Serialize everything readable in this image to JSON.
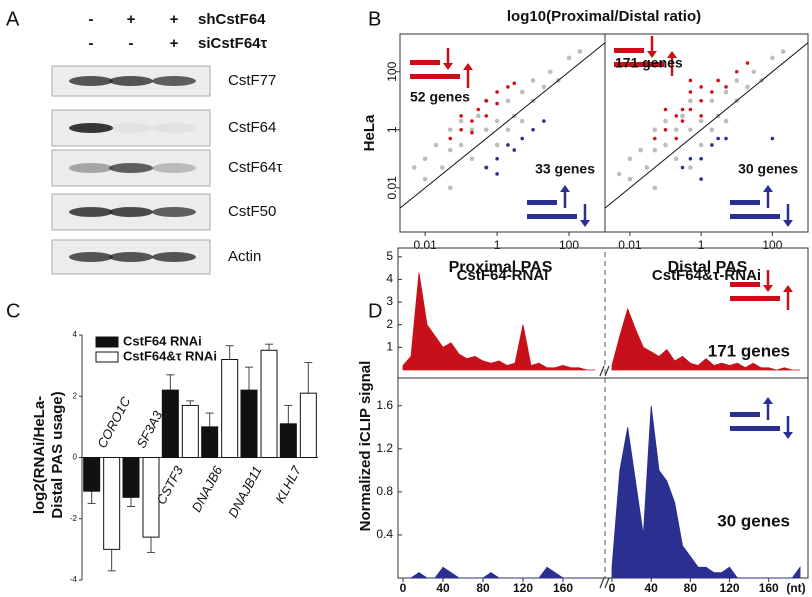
{
  "panel_labels": [
    "A",
    "B",
    "C",
    "D"
  ],
  "blot": {
    "treatments": [
      {
        "name": "shCstF64",
        "lanes": [
          "-",
          "+",
          "+"
        ]
      },
      {
        "name": "siCstF64τ",
        "lanes": [
          "-",
          "-",
          "+"
        ]
      }
    ],
    "rows": [
      "CstF77",
      "CstF64",
      "CstF64τ",
      "CstF50",
      "Actin"
    ]
  },
  "chart_data": [
    {
      "type": "scatter",
      "title": "log10(Proximal/Distal ratio)",
      "ylabel": "HeLa",
      "xlabel": "CstF64-RNAi",
      "log_x": true,
      "log_y": true,
      "xlim": [
        0.002,
        1000
      ],
      "ylim": [
        0.0003,
        2000
      ],
      "xticks": [
        0.01,
        1,
        100
      ],
      "yticks": [
        0.01,
        1,
        100
      ],
      "annotations": [
        "52 genes",
        "33 genes"
      ],
      "series": [
        {
          "color": "#bdbdbd",
          "x": [
            0.005,
            0.01,
            0.01,
            0.02,
            0.03,
            0.05,
            0.05,
            0.1,
            0.1,
            0.2,
            0.2,
            0.3,
            0.5,
            0.5,
            1,
            1,
            2,
            2,
            3,
            5,
            5,
            10,
            10,
            20,
            30,
            50,
            100,
            200,
            0.05,
            0.5
          ],
          "values": [
            0.05,
            0.02,
            0.1,
            0.3,
            0.05,
            0.2,
            1,
            0.3,
            2,
            1,
            0.1,
            3,
            1,
            10,
            2,
            0.3,
            10,
            1,
            3,
            20,
            2,
            10,
            50,
            30,
            100,
            50,
            300,
            500,
            0.01,
            0.05
          ]
        },
        {
          "color": "#d0101c",
          "x": [
            0.05,
            0.1,
            0.1,
            0.2,
            0.3,
            0.5,
            1,
            1,
            2,
            0.2,
            0.5,
            3
          ],
          "values": [
            0.5,
            1,
            3,
            2,
            5,
            10,
            8,
            20,
            30,
            0.8,
            3,
            40
          ]
        },
        {
          "color": "#2b2f8f",
          "x": [
            0.5,
            1,
            2,
            3,
            5,
            10,
            1,
            20
          ],
          "values": [
            0.05,
            0.1,
            0.3,
            0.2,
            0.5,
            1,
            0.03,
            2
          ]
        }
      ]
    },
    {
      "type": "scatter",
      "xlabel": "CstF64&τ-RNAi",
      "log_x": true,
      "log_y": true,
      "xlim": [
        0.002,
        1000
      ],
      "ylim": [
        0.0003,
        2000
      ],
      "xticks": [
        0.01,
        1,
        100
      ],
      "annotations": [
        "171 genes",
        "30 genes"
      ],
      "series": [
        {
          "color": "#bdbdbd",
          "x": [
            0.005,
            0.01,
            0.01,
            0.02,
            0.03,
            0.05,
            0.05,
            0.1,
            0.1,
            0.2,
            0.2,
            0.3,
            0.5,
            0.5,
            1,
            1,
            2,
            2,
            3,
            5,
            5,
            10,
            10,
            20,
            30,
            50,
            100,
            200,
            0.05,
            0.5
          ],
          "values": [
            0.03,
            0.02,
            0.1,
            0.2,
            0.05,
            0.2,
            1,
            0.3,
            2,
            1,
            0.1,
            3,
            1,
            10,
            2,
            0.3,
            10,
            1,
            3,
            20,
            2,
            10,
            50,
            30,
            100,
            50,
            300,
            500,
            0.01,
            0.05
          ]
        },
        {
          "color": "#d0101c",
          "x": [
            0.05,
            0.1,
            0.1,
            0.2,
            0.3,
            0.5,
            0.5,
            1,
            1,
            2,
            3,
            5,
            0.2,
            0.3,
            10,
            20,
            1,
            0.5
          ],
          "values": [
            0.5,
            1,
            5,
            3,
            5,
            20,
            5,
            10,
            30,
            20,
            50,
            30,
            0.5,
            2,
            100,
            200,
            3,
            50
          ]
        },
        {
          "color": "#2b2f8f",
          "x": [
            0.5,
            1,
            1,
            2,
            3,
            5,
            100,
            0.3
          ],
          "values": [
            0.1,
            0.1,
            0.02,
            0.3,
            0.5,
            0.5,
            0.5,
            0.05
          ]
        }
      ]
    },
    {
      "type": "bar",
      "ylabel": [
        "log2(RNAi/HeLa-",
        "Distal PAS usage)"
      ],
      "legend": "upper left",
      "categories": [
        "CORO1C",
        "SF3A3",
        "CSTF3",
        "DNAJB6",
        "DNAJB11",
        "KLHL7"
      ],
      "ylim": [
        -4,
        4
      ],
      "yticks": [
        -4,
        -2,
        0,
        2,
        4
      ],
      "series": [
        {
          "name": "CstF64 RNAi",
          "color": "#111111",
          "values": [
            -1.1,
            -1.3,
            2.2,
            1.0,
            2.2,
            1.1
          ],
          "errors": [
            0.4,
            0.3,
            0.5,
            0.45,
            0.75,
            0.6
          ]
        },
        {
          "name": "CstF64&τ RNAi",
          "color": "#ffffff",
          "values": [
            -3.0,
            -2.6,
            1.7,
            3.2,
            3.5,
            2.1
          ],
          "errors": [
            0.7,
            0.5,
            0.15,
            0.45,
            0.2,
            1.0
          ]
        }
      ]
    },
    {
      "type": "area",
      "ylabel": "Normalized iCLIP signal",
      "annotations": [
        "171 genes"
      ],
      "x": [
        0,
        8,
        16,
        24,
        32,
        40,
        48,
        56,
        64,
        72,
        80,
        88,
        96,
        104,
        112,
        120,
        128,
        136,
        144,
        152,
        160,
        168,
        176,
        184,
        192
      ],
      "xlim": [
        0,
        195
      ],
      "ylim": [
        0,
        5.3
      ],
      "yticks": [
        1,
        2,
        3,
        4,
        5
      ],
      "series": [
        {
          "name": "Proximal PAS",
          "color": "#c8101a",
          "values": [
            0.2,
            0.6,
            4.3,
            2.0,
            1.5,
            1.0,
            1.2,
            0.7,
            0.5,
            0.6,
            0.4,
            0.3,
            0.4,
            0.2,
            0.3,
            2.0,
            0.2,
            0.3,
            0.1,
            0.1,
            0.2,
            0.1,
            0.1,
            0,
            0
          ]
        },
        {
          "name": "Distal PAS",
          "color": "#c8101a",
          "values": [
            0.2,
            1.5,
            2.7,
            1.8,
            1.0,
            0.8,
            0.6,
            0.9,
            0.4,
            0.6,
            0.3,
            0.2,
            0.5,
            0.2,
            0.3,
            0.2,
            0.3,
            0.1,
            0.3,
            0.1,
            0.1,
            0,
            0.1,
            0,
            0
          ]
        }
      ]
    },
    {
      "type": "area",
      "annotations": [
        "30 genes"
      ],
      "xunit": "(nt)",
      "x": [
        0,
        8,
        16,
        24,
        32,
        40,
        48,
        56,
        64,
        72,
        80,
        88,
        96,
        104,
        112,
        120,
        128,
        136,
        144,
        152,
        160,
        168,
        176,
        184,
        192
      ],
      "xlim": [
        0,
        195
      ],
      "ylim": [
        0,
        1.7
      ],
      "yticks": [
        0.4,
        0.8,
        1.2,
        1.6
      ],
      "xticks": [
        0,
        40,
        80,
        120,
        160
      ],
      "series": [
        {
          "color": "#2b2f8f",
          "values": [
            0,
            0,
            0.05,
            0,
            0,
            0.1,
            0.05,
            0,
            0,
            0,
            0,
            0.05,
            0,
            0,
            0,
            0,
            0,
            0,
            0.1,
            0.05,
            0,
            0,
            0,
            0,
            0
          ]
        },
        {
          "color": "#2b2f8f",
          "values": [
            0.1,
            1.0,
            1.4,
            0.9,
            0.4,
            1.6,
            1.0,
            0.9,
            0.7,
            0.3,
            0.2,
            0.1,
            0.1,
            0.05,
            0.05,
            0.1,
            0,
            0,
            0,
            0,
            0,
            0,
            0,
            0,
            0.1
          ]
        }
      ]
    }
  ]
}
